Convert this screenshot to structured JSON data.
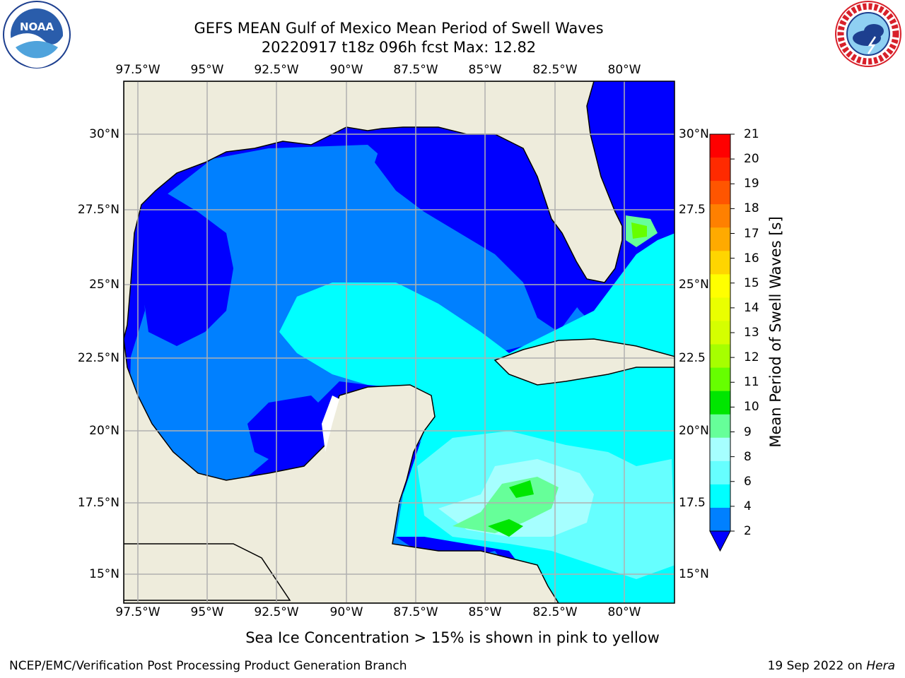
{
  "title": {
    "line1": "GEFS MEAN Gulf of Mexico Mean Period of Swell Waves",
    "line2": "20220917 t18z 096h fcst   Max: 12.82"
  },
  "logos": {
    "left": "noaa-logo",
    "right": "national-weather-service-logo"
  },
  "map": {
    "lon_ticks": [
      "97.5°W",
      "95°W",
      "92.5°W",
      "90°W",
      "87.5°W",
      "85°W",
      "82.5°W",
      "80°W"
    ],
    "lat_ticks": [
      "30°N",
      "27.5°N",
      "25°N",
      "22.5°N",
      "20°N",
      "17.5°N",
      "15°N"
    ],
    "right_lat_ticks": [
      "30°N",
      "27.5",
      "25°N",
      "22.5",
      "20°N",
      "17.5",
      "15°N"
    ],
    "extent": {
      "lon": [
        -98,
        -79
      ],
      "lat": [
        14,
        31.5
      ]
    },
    "land_color": "#eeecdc",
    "grid_color": "#b0b0b0"
  },
  "colorbar": {
    "label": "Mean Period of Swell Waves [s]",
    "ticks": [
      "21",
      "20",
      "19",
      "18",
      "17",
      "16",
      "15",
      "14",
      "13",
      "12",
      "11",
      "10",
      "9",
      "8",
      "6",
      "4",
      "2"
    ],
    "colors": [
      "#ff0000",
      "#ff2a00",
      "#ff5500",
      "#ff8000",
      "#ffaa00",
      "#ffd500",
      "#ffff00",
      "#eaff00",
      "#d5ff00",
      "#a6ff00",
      "#66ff00",
      "#00e600",
      "#66ff99",
      "#a6ffff",
      "#66ffff",
      "#00ffff",
      "#0080ff"
    ],
    "extend_color": "#0000ff"
  },
  "caption": "Sea Ice Concentration > 15% is shown in pink to yellow",
  "footer": {
    "left": "NCEP/EMC/Verification Post Processing Product Generation Branch",
    "right_prefix": "19 Sep 2022 on ",
    "right_host": "Hera"
  }
}
